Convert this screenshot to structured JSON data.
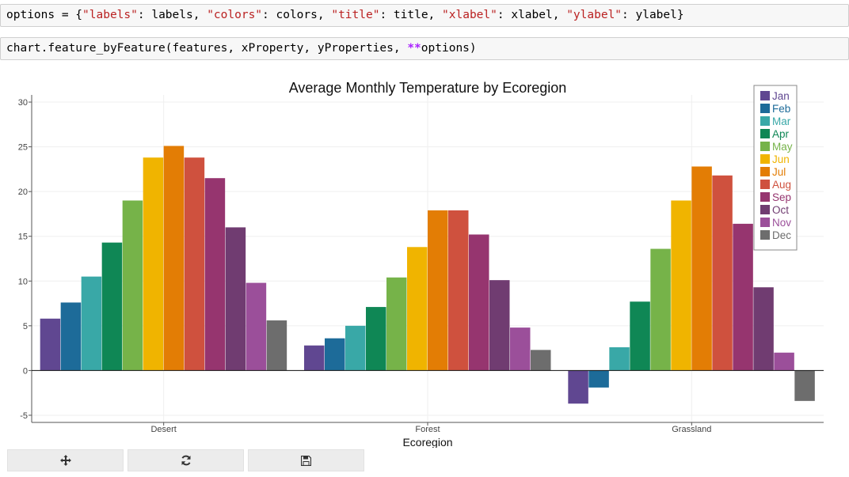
{
  "code_cells": {
    "cell1": "options = {\"labels\": labels, \"colors\": colors, \"title\": title, \"xlabel\": xlabel, \"ylabel\": ylabel}",
    "cell2": "chart.feature_byFeature(features, xProperty, yProperties, **options)"
  },
  "toolbar": {
    "pan_icon": "pan-move-icon",
    "reset_icon": "refresh-icon",
    "save_icon": "save-icon"
  },
  "chart_data": {
    "type": "bar",
    "title": "Average Monthly Temperature by Ecoregion",
    "xlabel": "Ecoregion",
    "ylabel": "",
    "ylim": [
      -5.8,
      30.8
    ],
    "yticks": [
      -5,
      0,
      5,
      10,
      15,
      20,
      25,
      30
    ],
    "grid": true,
    "legend_position": "top-right",
    "categories": [
      "Desert",
      "Forest",
      "Grassland"
    ],
    "series": [
      {
        "name": "Jan",
        "color": "#604791",
        "values": [
          5.8,
          2.8,
          -3.7
        ]
      },
      {
        "name": "Feb",
        "color": "#1d6b99",
        "values": [
          7.6,
          3.6,
          -1.9
        ]
      },
      {
        "name": "Mar",
        "color": "#39a8a7",
        "values": [
          10.5,
          5.0,
          2.6
        ]
      },
      {
        "name": "Apr",
        "color": "#0f8755",
        "values": [
          14.3,
          7.1,
          7.7
        ]
      },
      {
        "name": "May",
        "color": "#76b349",
        "values": [
          19.0,
          10.4,
          13.6
        ]
      },
      {
        "name": "Jun",
        "color": "#f0b400",
        "values": [
          23.8,
          13.8,
          19.0
        ]
      },
      {
        "name": "Jul",
        "color": "#e37d05",
        "values": [
          25.1,
          17.9,
          22.8
        ]
      },
      {
        "name": "Aug",
        "color": "#cf513e",
        "values": [
          23.8,
          17.9,
          21.8
        ]
      },
      {
        "name": "Sep",
        "color": "#96356f",
        "values": [
          21.5,
          15.2,
          16.4
        ]
      },
      {
        "name": "Oct",
        "color": "#703c71",
        "values": [
          16.0,
          10.1,
          9.3
        ]
      },
      {
        "name": "Nov",
        "color": "#9b4f9a",
        "values": [
          9.8,
          4.8,
          2.0
        ]
      },
      {
        "name": "Dec",
        "color": "#6d6d6d",
        "values": [
          5.6,
          2.3,
          -3.4
        ]
      }
    ]
  }
}
